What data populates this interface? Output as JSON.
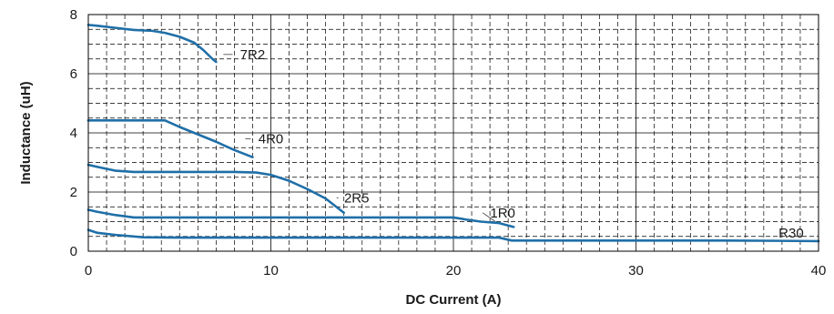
{
  "chart_data": {
    "type": "line",
    "title": "",
    "xlabel": "DC Current (A)",
    "ylabel": "Inductance (uH)",
    "xlim": [
      0,
      40
    ],
    "ylim": [
      0,
      8
    ],
    "xticks": [
      0,
      10,
      20,
      30,
      40
    ],
    "yticks": [
      0,
      2,
      4,
      6,
      8
    ],
    "grid": true,
    "line_color": "#1f6fa8",
    "series": [
      {
        "name": "7R2",
        "x": [
          0,
          0.5,
          1.5,
          2.5,
          3.5,
          4.2,
          5.0,
          5.8,
          6.3,
          6.8,
          7.0
        ],
        "y": [
          7.65,
          7.62,
          7.55,
          7.48,
          7.45,
          7.38,
          7.25,
          7.05,
          6.8,
          6.5,
          6.4
        ]
      },
      {
        "name": "4R0",
        "x": [
          0,
          1,
          2,
          3,
          4.2,
          5,
          6,
          7,
          8,
          9
        ],
        "y": [
          4.42,
          4.42,
          4.42,
          4.42,
          4.42,
          4.2,
          3.95,
          3.7,
          3.42,
          3.18
        ]
      },
      {
        "name": "2R5",
        "x": [
          0,
          0.5,
          1.5,
          2.5,
          5,
          8,
          9.2,
          10,
          11,
          12,
          13,
          14
        ],
        "y": [
          2.92,
          2.85,
          2.72,
          2.68,
          2.68,
          2.68,
          2.66,
          2.58,
          2.38,
          2.1,
          1.78,
          1.3
        ]
      },
      {
        "name": "1R0",
        "x": [
          0,
          0.5,
          1.5,
          2.5,
          5,
          10,
          15,
          20,
          20.7,
          21.5,
          22.5,
          23.3
        ],
        "y": [
          1.4,
          1.33,
          1.22,
          1.14,
          1.14,
          1.14,
          1.14,
          1.14,
          1.07,
          1.0,
          0.95,
          0.82
        ]
      },
      {
        "name": "R30",
        "x": [
          0,
          0.5,
          1.5,
          3,
          5,
          10,
          15,
          20,
          22.5,
          23.2,
          25,
          30,
          35,
          38,
          40
        ],
        "y": [
          0.72,
          0.62,
          0.55,
          0.47,
          0.46,
          0.46,
          0.46,
          0.46,
          0.46,
          0.36,
          0.36,
          0.36,
          0.36,
          0.35,
          0.34
        ]
      }
    ]
  }
}
